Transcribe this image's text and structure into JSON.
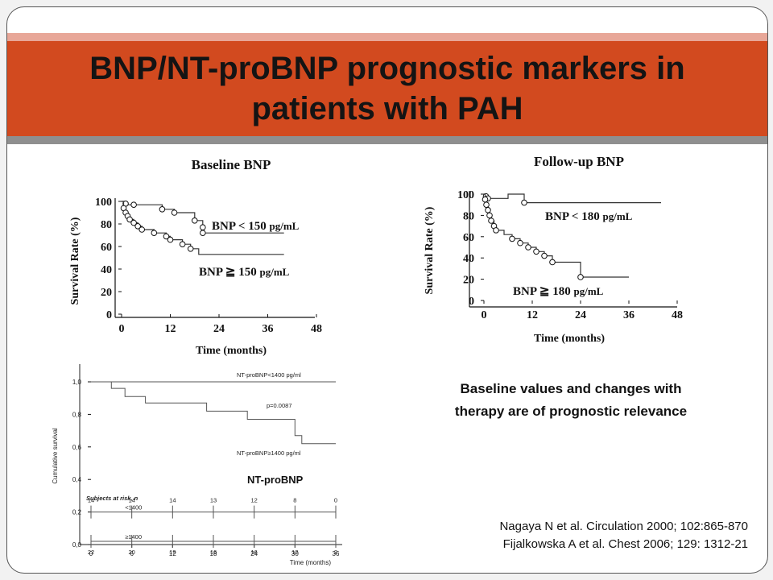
{
  "slide": {
    "title_line1": "BNP/NT-proBNP prognostic markers in",
    "title_line2": "patients with PAH",
    "takeaway_line1": "Baseline values and changes with",
    "takeaway_line2": "therapy are of prognostic relevance",
    "ref1": "Nagaya N et al. Circulation 2000; 102:865-870",
    "ref2": "Fijalkowska A et al. Chest 2006; 129: 1312-21",
    "colors": {
      "title_bar": "#d24a1f",
      "band_top": "#e8a798",
      "band_bottom": "#8f8f8f"
    }
  },
  "chart_data": [
    {
      "type": "line",
      "title": "Baseline BNP",
      "xlabel": "Time (months)",
      "ylabel": "Survival Rate (%)",
      "xticks": [
        "0",
        "12",
        "24",
        "36",
        "48"
      ],
      "yticks": [
        "100",
        "80",
        "60",
        "40",
        "20",
        "0"
      ],
      "xlim": [
        0,
        48
      ],
      "ylim": [
        0,
        100
      ],
      "series": [
        {
          "name": "BNP < 150 pg/mL",
          "label_main": "BNP < 150",
          "label_unit": "pg/mL",
          "x": [
            0,
            1,
            1,
            3,
            10,
            10,
            13,
            13,
            18,
            18,
            20,
            20,
            40
          ],
          "y": [
            100,
            100,
            97,
            97,
            97,
            93,
            93,
            90,
            90,
            83,
            83,
            72,
            72
          ],
          "markers": [
            [
              1,
              98
            ],
            [
              3,
              97
            ],
            [
              10,
              93
            ],
            [
              13,
              90
            ],
            [
              18,
              83
            ],
            [
              20,
              77
            ],
            [
              20,
              72
            ]
          ]
        },
        {
          "name": "BNP ≧ 150 pg/mL",
          "label_main": "BNP ≧ 150",
          "label_unit": "pg/mL",
          "x": [
            0,
            0.5,
            0.5,
            1,
            1,
            1.5,
            1.5,
            2,
            2,
            3,
            3,
            4,
            4,
            5,
            5,
            8,
            8,
            11,
            11,
            12,
            12,
            15,
            15,
            17,
            17,
            19,
            19,
            40
          ],
          "y": [
            100,
            100,
            94,
            94,
            90,
            90,
            87,
            87,
            84,
            84,
            81,
            81,
            78,
            78,
            75,
            75,
            72,
            72,
            69,
            69,
            66,
            66,
            62,
            62,
            58,
            58,
            53,
            53
          ],
          "markers": [
            [
              0.5,
              94
            ],
            [
              1,
              90
            ],
            [
              1.5,
              87
            ],
            [
              2,
              84
            ],
            [
              3,
              81
            ],
            [
              4,
              78
            ],
            [
              5,
              75
            ],
            [
              8,
              72
            ],
            [
              11,
              69
            ],
            [
              12,
              66
            ],
            [
              15,
              62
            ],
            [
              17,
              58
            ]
          ]
        }
      ]
    },
    {
      "type": "line",
      "title": "Follow-up BNP",
      "xlabel": "Time (months)",
      "ylabel": "Survival Rate (%)",
      "xticks": [
        "0",
        "12",
        "24",
        "36",
        "48"
      ],
      "yticks": [
        "100",
        "80",
        "60",
        "40",
        "20",
        "0"
      ],
      "xlim": [
        0,
        48
      ],
      "ylim": [
        0,
        100
      ],
      "series": [
        {
          "name": "BNP < 180 pg/mL",
          "label_main": "BNP < 180",
          "label_unit": "pg/mL",
          "x": [
            0,
            0.5,
            0.5,
            1,
            1,
            6,
            6,
            10,
            10,
            44
          ],
          "y": [
            100,
            100,
            98,
            98,
            96,
            96,
            100,
            100,
            92,
            92
          ],
          "markers": [
            [
              0.5,
              98
            ],
            [
              1,
              96
            ],
            [
              10,
              92
            ]
          ]
        },
        {
          "name": "BNP ≧ 180 pg/mL",
          "label_main": "BNP ≧ 180",
          "label_unit": "pg/mL",
          "x": [
            0,
            0.3,
            0.3,
            0.6,
            0.6,
            1,
            1,
            1.4,
            1.4,
            1.8,
            1.8,
            2.5,
            2.5,
            3,
            3,
            5,
            5,
            7,
            7,
            9,
            9,
            11,
            11,
            13,
            13,
            15,
            15,
            17,
            17,
            24,
            24,
            36
          ],
          "y": [
            100,
            100,
            95,
            95,
            90,
            90,
            85,
            85,
            80,
            80,
            75,
            75,
            70,
            70,
            66,
            66,
            62,
            62,
            58,
            58,
            54,
            54,
            50,
            50,
            46,
            46,
            42,
            42,
            36,
            36,
            22,
            22
          ],
          "markers": [
            [
              0.3,
              95
            ],
            [
              0.6,
              90
            ],
            [
              1,
              85
            ],
            [
              1.4,
              80
            ],
            [
              1.8,
              75
            ],
            [
              2.5,
              70
            ],
            [
              3,
              66
            ],
            [
              7,
              58
            ],
            [
              9,
              54
            ],
            [
              11,
              50
            ],
            [
              13,
              46
            ],
            [
              15,
              42
            ],
            [
              17,
              36
            ],
            [
              24,
              22
            ]
          ]
        }
      ]
    },
    {
      "type": "line",
      "caption": "NT-proBNP",
      "ylabel": "Cumulative survival",
      "xlabel": "Time (months)",
      "xticks": [
        "0",
        "6",
        "12",
        "18",
        "24",
        "30",
        "36"
      ],
      "yticks": [
        "0,0",
        "0,2",
        "0,4",
        "0,6",
        "0,8",
        "1,0"
      ],
      "xlim": [
        0,
        36
      ],
      "ylim": [
        0,
        1
      ],
      "p_value": "p=0.0087",
      "risk_title": "Subjects at risk, n",
      "risk_rows": [
        {
          "label": "<1400",
          "counts": [
            "14",
            "14",
            "14",
            "13",
            "12",
            "8",
            "0"
          ]
        },
        {
          "label": "≥1400",
          "counts": [
            "22",
            "20",
            "19",
            "16",
            "16",
            "12",
            "2"
          ]
        }
      ],
      "risk_row_y": [
        0.2,
        0.02
      ],
      "series": [
        {
          "name": "NT-proBNP<1400 pg/ml",
          "x": [
            0,
            36
          ],
          "y": [
            1.0,
            1.0
          ]
        },
        {
          "name": "NT-proBNP≥1400 pg/ml",
          "x": [
            0,
            3,
            3,
            5,
            5,
            8,
            8,
            17,
            17,
            23,
            23,
            30,
            30,
            31,
            31,
            36
          ],
          "y": [
            1.0,
            1.0,
            0.96,
            0.96,
            0.91,
            0.91,
            0.87,
            0.87,
            0.82,
            0.82,
            0.77,
            0.77,
            0.67,
            0.67,
            0.62,
            0.62
          ]
        }
      ]
    }
  ]
}
